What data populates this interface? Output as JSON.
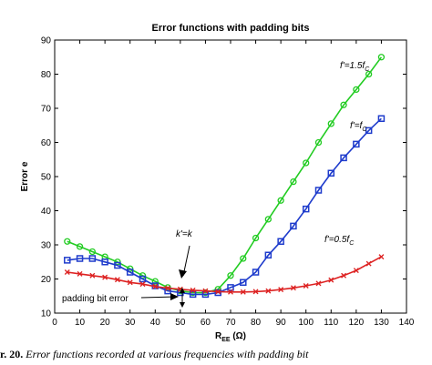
{
  "chart_data": {
    "type": "line",
    "title": "Error functions with padding bits",
    "xlabel": "R",
    "xlabel_sub": "EE",
    "xlabel_unit": " (Ω)",
    "ylabel": "Error e",
    "xlim": [
      0,
      140
    ],
    "ylim": [
      10,
      90
    ],
    "xticks": [
      0,
      10,
      20,
      30,
      40,
      50,
      60,
      70,
      80,
      90,
      100,
      110,
      120,
      130,
      140
    ],
    "yticks": [
      10,
      20,
      30,
      40,
      50,
      60,
      70,
      80,
      90
    ],
    "x": [
      5,
      10,
      15,
      20,
      25,
      30,
      35,
      40,
      45,
      50,
      55,
      60,
      65,
      70,
      75,
      80,
      85,
      90,
      95,
      100,
      105,
      110,
      115,
      120,
      125,
      130
    ],
    "series": [
      {
        "name": "f'=1.5f",
        "name_sub": "C",
        "color": "#22cc22",
        "marker": "circle",
        "values": [
          31,
          29.5,
          28,
          26.5,
          25,
          23,
          21,
          19.3,
          17.5,
          16.5,
          16,
          16,
          17,
          21,
          26,
          32,
          37.5,
          43,
          48.5,
          54,
          60,
          65.5,
          71,
          75.5,
          80,
          85
        ]
      },
      {
        "name": "f'=f",
        "name_sub": "C",
        "color": "#1f3ccc",
        "marker": "square",
        "values": [
          25.5,
          26,
          26,
          25,
          24,
          22,
          20,
          18,
          16.5,
          16,
          15.5,
          15.5,
          16,
          17.5,
          19,
          22,
          27,
          31,
          35.5,
          40.5,
          46,
          51,
          55.5,
          59.5,
          63.5,
          67
        ]
      },
      {
        "name": "f'=0.5f",
        "name_sub": "C",
        "color": "#dd2222",
        "marker": "x",
        "values": [
          22,
          21.5,
          21,
          20.5,
          19.8,
          19,
          18.5,
          17.8,
          17.3,
          17,
          16.7,
          16.5,
          16.3,
          16.2,
          16.2,
          16.3,
          16.5,
          16.9,
          17.4,
          18,
          18.7,
          19.7,
          21,
          22.5,
          24.5,
          26.5
        ]
      }
    ],
    "annotations": {
      "kk": "k'=k",
      "padding": "padding bit error"
    }
  },
  "caption": {
    "label": "r. 20.",
    "text": "Error functions recorded at various frequencies with padding bit"
  }
}
